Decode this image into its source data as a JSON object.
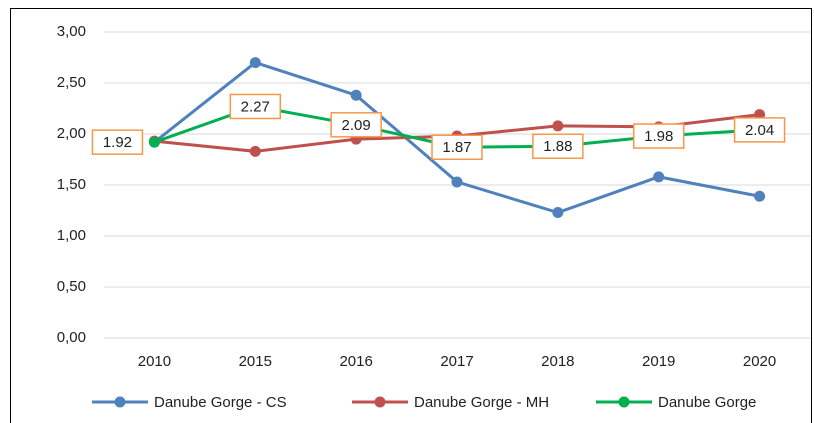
{
  "chart_data": {
    "type": "line",
    "categories": [
      "2010",
      "2015",
      "2016",
      "2017",
      "2018",
      "2019",
      "2020"
    ],
    "series": [
      {
        "name": "Danube Gorge - CS",
        "color": "#4f81bd",
        "values": [
          1.92,
          2.7,
          2.38,
          1.53,
          1.23,
          1.58,
          1.39
        ]
      },
      {
        "name": "Danube Gorge - MH",
        "color": "#c0504d",
        "values": [
          1.93,
          1.83,
          1.95,
          1.98,
          2.08,
          2.07,
          2.19
        ]
      },
      {
        "name": "Danube Gorge",
        "color": "#00b050",
        "values": [
          1.92,
          2.27,
          2.09,
          1.87,
          1.88,
          1.98,
          2.04
        ],
        "data_labels": true
      }
    ],
    "ylim": [
      0,
      3
    ],
    "yticks": [
      {
        "value": 0,
        "label": "0,00"
      },
      {
        "value": 0.5,
        "label": "0,50"
      },
      {
        "value": 1,
        "label": "1,00"
      },
      {
        "value": 1.5,
        "label": "1,50"
      },
      {
        "value": 2,
        "label": "2,00"
      },
      {
        "value": 2.5,
        "label": "2,50"
      },
      {
        "value": 3,
        "label": "3,00"
      }
    ],
    "grid": true,
    "legend": "bottom",
    "label_border_color": "#f79646"
  }
}
